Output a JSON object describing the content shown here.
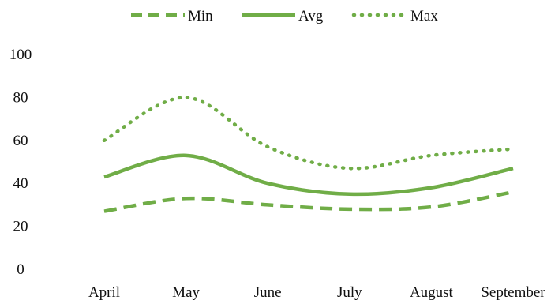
{
  "chart_data": {
    "type": "line",
    "title": "",
    "xlabel": "",
    "ylabel": "",
    "categories": [
      "April",
      "May",
      "June",
      "July",
      "August",
      "September"
    ],
    "ylim": [
      0,
      100
    ],
    "yticks": [
      "0",
      "20",
      "40",
      "60",
      "80",
      "100"
    ],
    "grid": false,
    "legend": "top",
    "series": [
      {
        "name": "Min",
        "values": [
          27,
          33,
          30,
          28,
          29,
          36
        ],
        "style": "dashed",
        "color": "#70ad47"
      },
      {
        "name": "Avg",
        "values": [
          43,
          53,
          40,
          35,
          38,
          47
        ],
        "style": "solid",
        "color": "#70ad47"
      },
      {
        "name": "Max",
        "values": [
          60,
          80,
          57,
          47,
          53,
          56
        ],
        "style": "dotted",
        "color": "#70ad47"
      }
    ]
  }
}
